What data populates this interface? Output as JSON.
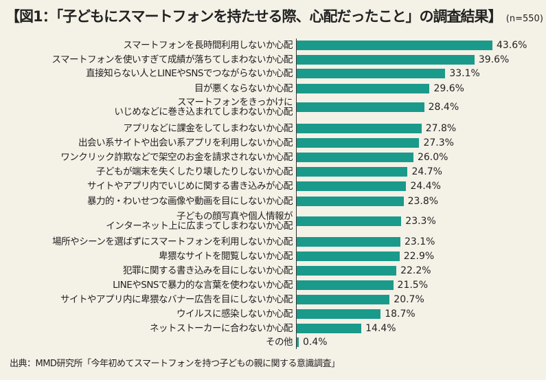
{
  "chart_data": {
    "type": "bar",
    "orientation": "horizontal",
    "title": "【図1：「子どもにスマートフォンを持たせる際、心配だったこと」の調査結果】",
    "sample": "(n=550)",
    "categories": [
      "スマートフォンを長時間利用しないか心配",
      "スマートフォンを使いすぎて成績が落ちてしまわないか心配",
      "直接知らない人とLINEやSNSでつながらないか心配",
      "目が悪くならないか心配",
      "スマートフォンをきっかけに\nいじめなどに巻き込まれてしまわないか心配",
      "アプリなどに課金をしてしまわないか心配",
      "出会い系サイトや出会い系アプリを利用しないか心配",
      "ワンクリック詐欺などで架空のお金を請求されないか心配",
      "子どもが端末を失くしたり壊したりしないか心配",
      "サイトやアプリ内でいじめに関する書き込みが心配",
      "暴力的・わいせつな画像や動画を目にしないか心配",
      "子どもの顔写真や個人情報が\nインターネット上に広まってしまわないか心配",
      "場所やシーンを選ばずにスマートフォンを利用しないか心配",
      "卑猥なサイトを閲覧しないか心配",
      "犯罪に関する書き込みを目にしないか心配",
      "LINEやSNSで暴力的な言葉を使わないか心配",
      "サイトやアプリ内に卑猥なバナー広告を目にしないか心配",
      "ウイルスに感染しないか心配",
      "ネットストーカーに合わないか心配",
      "その他"
    ],
    "values": [
      43.6,
      39.6,
      33.1,
      29.6,
      28.4,
      27.8,
      27.3,
      26.0,
      24.7,
      24.4,
      23.8,
      23.3,
      23.1,
      22.9,
      22.2,
      21.5,
      20.7,
      18.7,
      14.4,
      0.4
    ],
    "value_labels": [
      "43.6%",
      "39.6%",
      "33.1%",
      "29.6%",
      "28.4%",
      "27.8%",
      "27.3%",
      "26.0%",
      "24.7%",
      "24.4%",
      "23.8%",
      "23.3%",
      "23.1%",
      "22.9%",
      "22.2%",
      "21.5%",
      "20.7%",
      "18.7%",
      "14.4%",
      "0.4%"
    ],
    "unit": "%",
    "bar_color": "#1a9a8a",
    "grid": false,
    "legend": "none"
  },
  "source": "出典：MMD研究所「今年初めてスマートフォンを持つ子どもの親に関する意識調査」"
}
